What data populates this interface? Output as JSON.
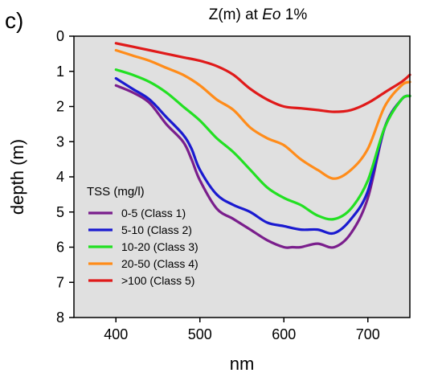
{
  "panel_label": "c)",
  "chart_data": {
    "type": "line",
    "title": {
      "prefix": "Z(m) at ",
      "italic": "Eo",
      "suffix": " 1%"
    },
    "xlabel": "nm",
    "ylabel": "depth (m)",
    "xlim": [
      350,
      750
    ],
    "ylim": [
      0,
      8
    ],
    "y_inverted": true,
    "x_ticks": [
      400,
      500,
      600,
      700
    ],
    "y_ticks": [
      0,
      1,
      2,
      3,
      4,
      5,
      6,
      7,
      8
    ],
    "grid": false,
    "plot_background": "#e0e0e0",
    "legend_title": "TSS (mg/l)",
    "legend_position": "lower-left",
    "series": [
      {
        "name": "0-5 (Class 1)",
        "color": "#7a1e8c",
        "x": [
          400,
          420,
          440,
          460,
          480,
          490,
          500,
          520,
          540,
          560,
          580,
          600,
          610,
          620,
          640,
          660,
          680,
          700,
          720,
          740,
          750
        ],
        "y": [
          1.4,
          1.6,
          1.9,
          2.5,
          3.0,
          3.5,
          4.1,
          4.9,
          5.2,
          5.5,
          5.8,
          6.0,
          6.0,
          6.0,
          5.9,
          6.0,
          5.6,
          4.6,
          2.6,
          1.8,
          1.7
        ]
      },
      {
        "name": "5-10 (Class 2)",
        "color": "#1a1ad0",
        "x": [
          400,
          420,
          440,
          460,
          480,
          490,
          500,
          520,
          540,
          560,
          580,
          600,
          620,
          640,
          660,
          680,
          700,
          720,
          740,
          750
        ],
        "y": [
          1.2,
          1.5,
          1.8,
          2.3,
          2.8,
          3.2,
          3.8,
          4.5,
          4.8,
          5.0,
          5.3,
          5.4,
          5.5,
          5.5,
          5.6,
          5.2,
          4.4,
          2.6,
          1.8,
          1.7
        ]
      },
      {
        "name": "10-20 (Class 3)",
        "color": "#22e022",
        "x": [
          400,
          420,
          440,
          460,
          480,
          500,
          520,
          540,
          560,
          580,
          600,
          620,
          640,
          660,
          680,
          700,
          720,
          740,
          750
        ],
        "y": [
          0.95,
          1.1,
          1.3,
          1.6,
          2.0,
          2.4,
          2.9,
          3.3,
          3.8,
          4.3,
          4.6,
          4.8,
          5.1,
          5.2,
          4.9,
          4.1,
          2.6,
          1.8,
          1.7
        ]
      },
      {
        "name": "20-50 (Class 4)",
        "color": "#ff8c1a",
        "x": [
          400,
          420,
          440,
          460,
          480,
          500,
          520,
          540,
          560,
          580,
          600,
          620,
          640,
          660,
          680,
          700,
          720,
          740,
          750
        ],
        "y": [
          0.4,
          0.55,
          0.7,
          0.9,
          1.1,
          1.4,
          1.8,
          2.1,
          2.6,
          2.9,
          3.1,
          3.5,
          3.8,
          4.05,
          3.8,
          3.2,
          2.0,
          1.4,
          1.3
        ]
      },
      {
        "name": ">100 (Class 5)",
        "color": "#e01a1a",
        "x": [
          400,
          420,
          440,
          460,
          480,
          500,
          520,
          540,
          560,
          580,
          600,
          620,
          640,
          660,
          680,
          700,
          720,
          740,
          750
        ],
        "y": [
          0.2,
          0.3,
          0.4,
          0.5,
          0.6,
          0.7,
          0.85,
          1.1,
          1.5,
          1.8,
          2.0,
          2.05,
          2.1,
          2.15,
          2.1,
          1.9,
          1.6,
          1.3,
          1.1
        ]
      }
    ]
  }
}
